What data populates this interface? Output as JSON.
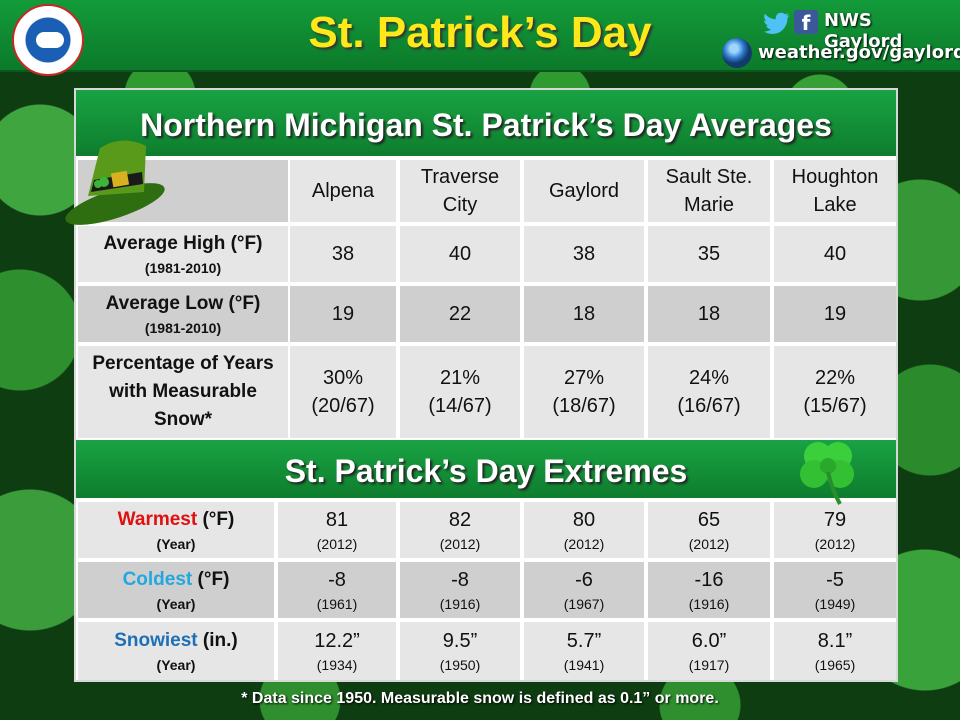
{
  "header": {
    "title": "St. Patrick’s Day",
    "social_handle": "NWS Gaylord",
    "website": "weather.gov/gaylord",
    "icons": [
      "nws-logo",
      "twitter-icon",
      "facebook-icon",
      "globe-icon"
    ],
    "facebook_glyph": "f"
  },
  "averages": {
    "title": "Northern Michigan St. Patrick’s Day Averages",
    "cities": [
      "Alpena",
      "Traverse City",
      "Gaylord",
      "Sault Ste. Marie",
      "Houghton Lake"
    ],
    "rows": [
      {
        "label": "Average High (°F)",
        "sub": "(1981-2010)",
        "values": [
          "38",
          "40",
          "38",
          "35",
          "40"
        ]
      },
      {
        "label": "Average Low (°F)",
        "sub": "(1981-2010)",
        "values": [
          "19",
          "22",
          "18",
          "18",
          "19"
        ]
      },
      {
        "label": "Percentage of Years with Measurable Snow*",
        "values": [
          "30%",
          "21%",
          "27%",
          "24%",
          "22%"
        ],
        "fractions": [
          "(20/67)",
          "(14/67)",
          "(18/67)",
          "(16/67)",
          "(15/67)"
        ]
      }
    ]
  },
  "extremes": {
    "title": "St. Patrick’s Day Extremes",
    "year_label": "(Year)",
    "rows": [
      {
        "label_colored": "Warmest",
        "label_unit": " (°F)",
        "color": "#e01010",
        "values": [
          "81",
          "82",
          "80",
          "65",
          "79"
        ],
        "years": [
          "(2012)",
          "(2012)",
          "(2012)",
          "(2012)",
          "(2012)"
        ]
      },
      {
        "label_colored": "Coldest",
        "label_unit": " (°F)",
        "color": "#22a8e0",
        "values": [
          "-8",
          "-8",
          "-6",
          "-16",
          "-5"
        ],
        "years": [
          "(1961)",
          "(1916)",
          "(1967)",
          "(1916)",
          "(1949)"
        ]
      },
      {
        "label_colored": "Snowiest",
        "label_unit": " (in.)",
        "color": "#1f6fb5",
        "values": [
          "12.2”",
          "9.5”",
          "5.7”",
          "6.0”",
          "8.1”"
        ],
        "years": [
          "(1934)",
          "(1950)",
          "(1941)",
          "(1917)",
          "(1965)"
        ]
      }
    ]
  },
  "footnote": "* Data since 1950. Measurable snow is defined as 0.1” or more."
}
